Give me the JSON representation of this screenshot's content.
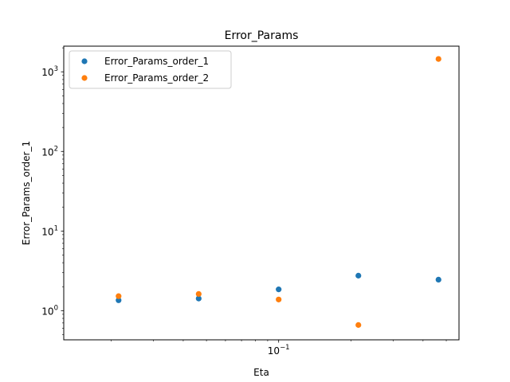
{
  "chart_data": {
    "type": "scatter",
    "title": "Error_Params",
    "xlabel": "Eta",
    "ylabel": "Error_Params_order_1",
    "xscale": "log",
    "yscale": "log",
    "xlim": [
      0.0127,
      0.565
    ],
    "ylim": [
      0.43,
      2100
    ],
    "x_tick_labels": [
      {
        "value": 0.1,
        "base": "10",
        "exp": "−1"
      }
    ],
    "y_tick_labels": [
      {
        "value": 1,
        "base": "10",
        "exp": "0"
      },
      {
        "value": 10,
        "base": "10",
        "exp": "1"
      },
      {
        "value": 100,
        "base": "10",
        "exp": "2"
      },
      {
        "value": 1000,
        "base": "10",
        "exp": "3"
      }
    ],
    "grid": false,
    "legend_position": "upper-left",
    "series": [
      {
        "name": "Error_Params_order_1",
        "color": "#1f77b4",
        "points": [
          {
            "x": 0.0215,
            "y": 1.35
          },
          {
            "x": 0.0464,
            "y": 1.42
          },
          {
            "x": 0.1,
            "y": 1.85
          },
          {
            "x": 0.215,
            "y": 2.75
          },
          {
            "x": 0.464,
            "y": 2.45
          }
        ]
      },
      {
        "name": "Error_Params_order_2",
        "color": "#ff7f0e",
        "points": [
          {
            "x": 0.0215,
            "y": 1.52
          },
          {
            "x": 0.0464,
            "y": 1.62
          },
          {
            "x": 0.1,
            "y": 1.38
          },
          {
            "x": 0.215,
            "y": 0.66
          },
          {
            "x": 0.464,
            "y": 1450
          }
        ]
      }
    ]
  }
}
